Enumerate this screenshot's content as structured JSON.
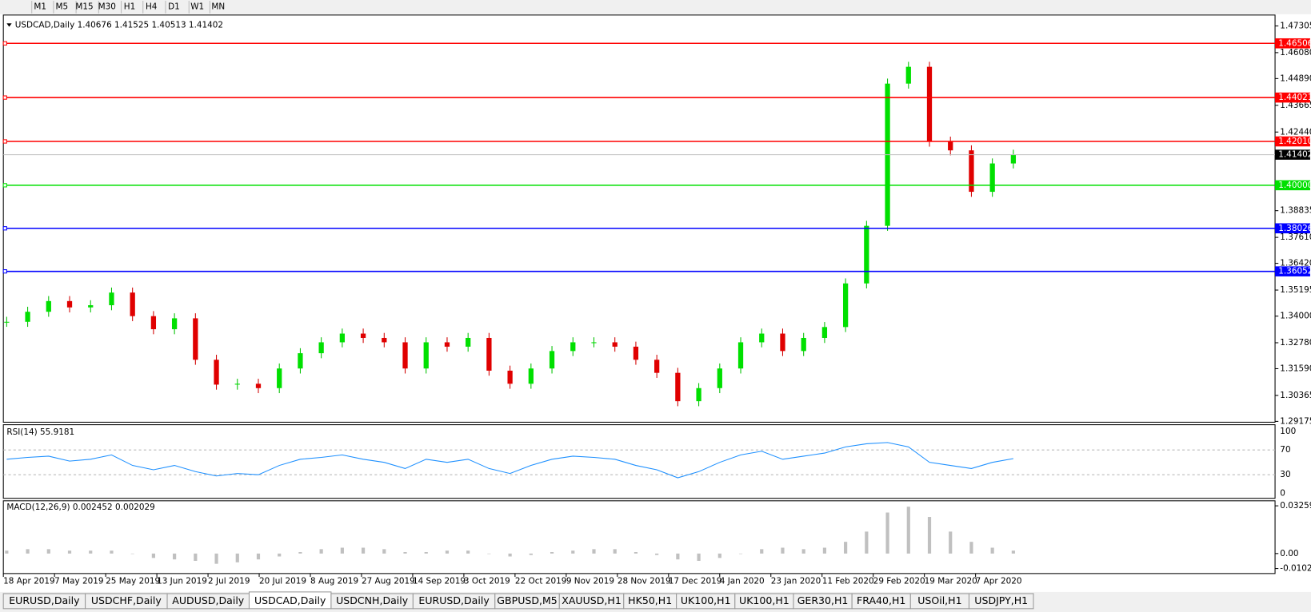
{
  "toolbar": {
    "timeframes": [
      "M1",
      "M5",
      "M15",
      "M30",
      "H1",
      "H4",
      "D1",
      "W1",
      "MN"
    ]
  },
  "main_pane": {
    "header": "USDCAD,Daily  1.40676 1.41525 1.40513 1.41402",
    "ylim": [
      1.29175,
      1.47305
    ],
    "yticks": [
      1.47305,
      {
        "value": 1.4608,
        "label": "1.46080"
      },
      {
        "value": 1.4489,
        "label": "1.44890"
      },
      1.43665,
      {
        "value": 1.4244,
        "label": "1.42440"
      },
      1.38835,
      {
        "value": 1.3761,
        "label": "1.37610"
      },
      {
        "value": 1.3642,
        "label": "1.36420"
      },
      1.35195,
      {
        "value": 1.34,
        "label": "1.34000"
      },
      {
        "value": 1.3278,
        "label": "1.32780"
      },
      {
        "value": 1.3159,
        "label": "1.31590"
      },
      1.30365,
      1.29175
    ],
    "levels": [
      {
        "value": 1.46506,
        "color": "#ff0000"
      },
      {
        "value": 1.44021,
        "color": "#ff0000"
      },
      {
        "value": 1.4201,
        "label": "1.42010",
        "color": "#ff0000"
      },
      {
        "value": 1.4,
        "label": "1.40000",
        "color": "#00e000"
      },
      {
        "value": 1.38026,
        "color": "#0000ff"
      },
      {
        "value": 1.36052,
        "color": "#0000ff"
      }
    ],
    "current_price": 1.41402,
    "closes": [
      1.3374,
      1.342,
      1.3469,
      1.344,
      1.345,
      1.3508,
      1.34,
      1.334,
      1.339,
      1.32,
      1.3086,
      1.309,
      1.307,
      1.316,
      1.323,
      1.328,
      1.332,
      1.33,
      1.328,
      1.316,
      1.328,
      1.326,
      1.33,
      1.315,
      1.309,
      1.316,
      1.324,
      1.328,
      1.328,
      1.326,
      1.32,
      1.314,
      1.301,
      1.307,
      1.316,
      1.328,
      1.332,
      1.324,
      1.33,
      1.335,
      1.355,
      1.3814,
      1.4466,
      1.4543,
      1.42,
      1.416,
      1.397,
      1.41,
      1.414
    ]
  },
  "rsi_pane": {
    "header": "RSI(14) 55.9181",
    "ylim": [
      0,
      100
    ],
    "yticks": [
      100,
      70,
      30,
      0
    ],
    "values": [
      55,
      58,
      60,
      52,
      55,
      62,
      45,
      38,
      45,
      35,
      28,
      32,
      30,
      45,
      55,
      58,
      62,
      55,
      50,
      40,
      55,
      50,
      55,
      40,
      32,
      45,
      55,
      60,
      58,
      55,
      45,
      38,
      25,
      35,
      50,
      62,
      68,
      55,
      60,
      65,
      75,
      80,
      82,
      75,
      50,
      45,
      40,
      50,
      56
    ]
  },
  "macd_pane": {
    "header": "MACD(12,26,9) 0.002452 0.002029",
    "ylim": [
      -0.010227,
      0.032595
    ],
    "yticks": [
      0.032595,
      {
        "value": 0,
        "label": "0.00"
      },
      -0.010227
    ],
    "values": [
      0.002,
      0.003,
      0.003,
      0.002,
      0.002,
      0.002,
      0.0,
      -0.003,
      -0.004,
      -0.005,
      -0.007,
      -0.006,
      -0.004,
      -0.002,
      0.001,
      0.003,
      0.004,
      0.004,
      0.003,
      0.001,
      0.001,
      0.002,
      0.002,
      0.0,
      -0.002,
      -0.001,
      0.001,
      0.002,
      0.003,
      0.003,
      0.001,
      -0.001,
      -0.004,
      -0.005,
      -0.003,
      0.0,
      0.003,
      0.004,
      0.003,
      0.004,
      0.008,
      0.015,
      0.028,
      0.032,
      0.025,
      0.015,
      0.008,
      0.004,
      0.002
    ]
  },
  "dates": [
    "18 Apr 2019",
    "7 May 2019",
    "25 May 2019",
    "13 Jun 2019",
    "2 Jul 2019",
    "20 Jul 2019",
    "8 Aug 2019",
    "27 Aug 2019",
    "14 Sep 2019",
    "3 Oct 2019",
    "22 Oct 2019",
    "9 Nov 2019",
    "28 Nov 2019",
    "17 Dec 2019",
    "4 Jan 2020",
    "23 Jan 2020",
    "11 Feb 2020",
    "29 Feb 2020",
    "19 Mar 2020",
    "7 Apr 2020"
  ],
  "tabs": [
    "EURUSD,Daily",
    "USDCHF,Daily",
    "AUDUSD,Daily",
    "USDCAD,Daily",
    "USDCNH,Daily",
    "EURUSD,Daily",
    "GBPUSD,M5",
    "XAUUSD,H1",
    "HK50,H1",
    "UK100,H1",
    "UK100,H1",
    "GER30,H1",
    "FRA40,H1",
    "USOil,H1",
    "USDJPY,H1"
  ],
  "active_tab": 3
}
